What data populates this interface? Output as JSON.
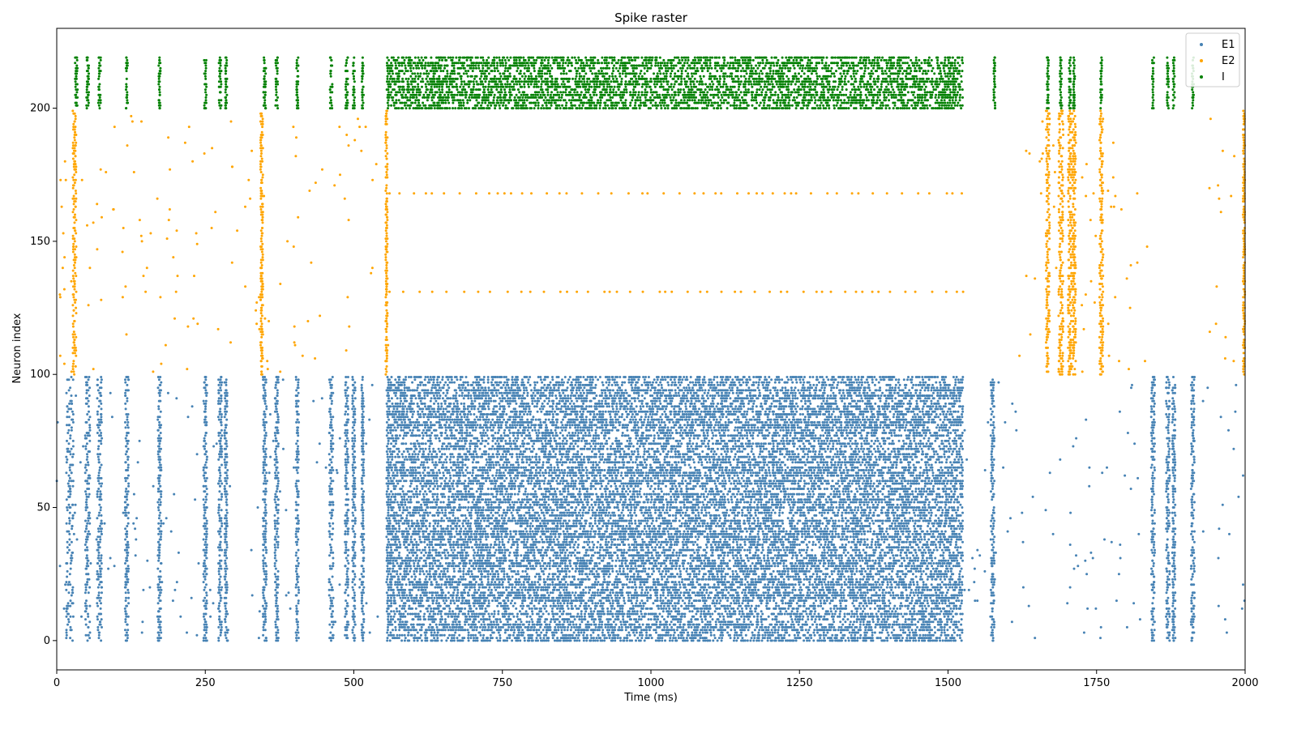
{
  "chart_data": {
    "type": "scatter",
    "title": "Spike raster",
    "xlabel": "Time (ms)",
    "ylabel": "Neuron index",
    "xlim": [
      0,
      2000
    ],
    "ylim": [
      -11,
      230
    ],
    "xticks": [
      0,
      250,
      500,
      750,
      1000,
      1250,
      1500,
      1750,
      2000
    ],
    "yticks": [
      0,
      50,
      100,
      150,
      200
    ],
    "grid": false,
    "legend_position": "top-right",
    "series": [
      {
        "name": "E1",
        "color": "#4682b4",
        "neuron_range": [
          0,
          99
        ],
        "bursts": [
          [
            22,
            12
          ],
          [
            52,
            8
          ],
          [
            72,
            8
          ],
          [
            118,
            6
          ],
          [
            173,
            6
          ],
          [
            250,
            6
          ],
          [
            275,
            6
          ],
          [
            285,
            5
          ],
          [
            350,
            6
          ],
          [
            370,
            6
          ],
          [
            405,
            5
          ],
          [
            462,
            7
          ],
          [
            488,
            6
          ],
          [
            500,
            5
          ],
          [
            515,
            4
          ],
          [
            1575,
            6
          ],
          [
            1845,
            6
          ],
          [
            1870,
            6
          ],
          [
            1880,
            5
          ],
          [
            1912,
            6
          ]
        ],
        "dense_intervals": [
          [
            555,
            1525
          ]
        ],
        "sparse_intervals": [
          [
            0,
            555
          ],
          [
            1525,
            1665
          ],
          [
            1665,
            1840
          ],
          [
            1920,
            2000
          ]
        ]
      },
      {
        "name": "E2",
        "color": "#ffa500",
        "neuron_range": [
          100,
          199
        ],
        "bursts": [
          [
            30,
            6
          ],
          [
            345,
            4
          ],
          [
            555,
            3
          ],
          [
            1668,
            6
          ],
          [
            1690,
            8
          ],
          [
            1705,
            6
          ],
          [
            1712,
            6
          ],
          [
            1758,
            6
          ],
          [
            1998,
            3
          ]
        ],
        "sparse_intervals": [
          [
            0,
            560
          ],
          [
            1620,
            1840
          ],
          [
            1940,
            2000
          ]
        ],
        "persistent_neurons": [
          168,
          131
        ]
      },
      {
        "name": "I",
        "color": "#008000",
        "neuron_range": [
          200,
          219
        ],
        "bursts": [
          [
            33,
            4
          ],
          [
            52,
            4
          ],
          [
            72,
            4
          ],
          [
            118,
            3
          ],
          [
            173,
            3
          ],
          [
            250,
            4
          ],
          [
            275,
            4
          ],
          [
            285,
            3
          ],
          [
            350,
            4
          ],
          [
            370,
            4
          ],
          [
            405,
            3
          ],
          [
            462,
            4
          ],
          [
            488,
            4
          ],
          [
            500,
            3
          ],
          [
            515,
            3
          ],
          [
            1578,
            3
          ],
          [
            1668,
            3
          ],
          [
            1690,
            4
          ],
          [
            1705,
            3
          ],
          [
            1712,
            3
          ],
          [
            1758,
            3
          ],
          [
            1845,
            3
          ],
          [
            1870,
            3
          ],
          [
            1880,
            3
          ],
          [
            1912,
            3
          ]
        ],
        "dense_intervals": [
          [
            555,
            1525
          ]
        ]
      }
    ]
  }
}
